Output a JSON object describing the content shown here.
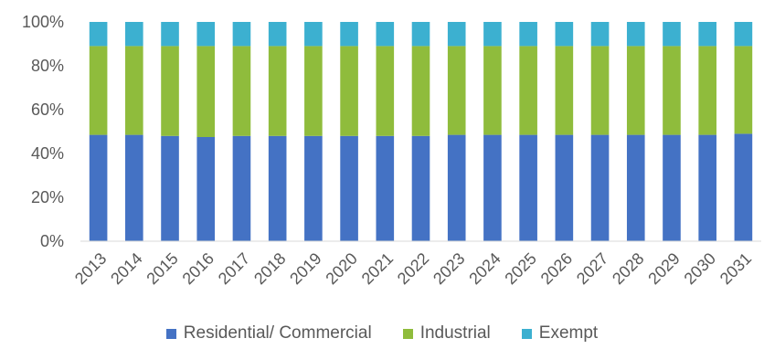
{
  "chart_data": {
    "type": "bar",
    "stacked": true,
    "categories": [
      "2013",
      "2014",
      "2015",
      "2016",
      "2017",
      "2018",
      "2019",
      "2020",
      "2021",
      "2022",
      "2023",
      "2024",
      "2025",
      "2026",
      "2027",
      "2028",
      "2029",
      "2030",
      "2031"
    ],
    "series": [
      {
        "name": "Residential/ Commercial",
        "color": "#4472c4",
        "values": [
          48.5,
          48.5,
          48,
          47.5,
          48,
          48,
          48,
          48,
          48,
          48,
          48.5,
          48.5,
          48.5,
          48.5,
          48.5,
          48.5,
          48.5,
          48.5,
          49
        ]
      },
      {
        "name": "Industrial",
        "color": "#8fbc3c",
        "values": [
          40.5,
          40.5,
          41,
          41.5,
          41,
          41,
          41,
          41,
          41,
          41,
          40.5,
          40.5,
          40.5,
          40.5,
          40.5,
          40.5,
          40.5,
          40.5,
          40
        ]
      },
      {
        "name": "Exempt",
        "color": "#3cb0d0",
        "values": [
          11,
          11,
          11,
          11,
          11,
          11,
          11,
          11,
          11,
          11,
          11,
          11,
          11,
          11,
          11,
          11,
          11,
          11,
          11
        ]
      }
    ],
    "y_ticks": [
      "0%",
      "20%",
      "40%",
      "60%",
      "80%",
      "100%"
    ],
    "ylim": [
      0,
      100
    ],
    "grid": false,
    "legend_position": "bottom"
  }
}
